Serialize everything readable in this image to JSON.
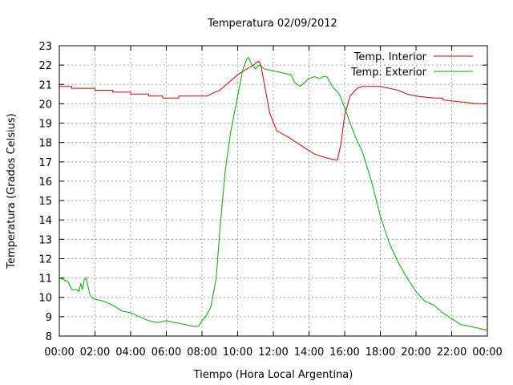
{
  "chart_data": {
    "type": "line",
    "title": "Temperatura 02/09/2012",
    "xlabel": "Tiempo (Hora Local Argentina)",
    "ylabel": "Temperatura (Grados Celsius)",
    "xlim": [
      0,
      24
    ],
    "ylim": [
      8,
      23
    ],
    "x_ticks": [
      "00:00",
      "02:00",
      "04:00",
      "06:00",
      "08:00",
      "10:00",
      "12:00",
      "14:00",
      "16:00",
      "18:00",
      "20:00",
      "22:00",
      "00:00"
    ],
    "y_ticks": [
      "8",
      "9",
      "10",
      "11",
      "12",
      "13",
      "14",
      "15",
      "16",
      "17",
      "18",
      "19",
      "20",
      "21",
      "22",
      "23"
    ],
    "grid": true,
    "legend_position": "top-right",
    "series": [
      {
        "name": "Temp. Interior",
        "color": "#cc0000",
        "x": [
          0,
          0.7,
          0.7,
          2.0,
          2.0,
          3.0,
          3.0,
          4.0,
          4.0,
          5.0,
          5.0,
          5.8,
          5.8,
          6.7,
          6.7,
          8.3,
          8.5,
          9.0,
          9.5,
          10.0,
          10.5,
          10.9,
          11.0,
          11.2,
          11.3,
          11.5,
          11.8,
          12.2,
          12.8,
          13.3,
          13.8,
          14.3,
          15.0,
          15.5,
          15.6,
          15.8,
          16.0,
          16.3,
          16.7,
          17.0,
          17.5,
          18.0,
          18.5,
          19.0,
          19.5,
          20.0,
          21.0,
          21.5,
          21.5,
          22.5,
          23.5,
          24.0
        ],
        "y": [
          20.9,
          20.9,
          20.8,
          20.8,
          20.7,
          20.7,
          20.6,
          20.6,
          20.5,
          20.5,
          20.4,
          20.4,
          20.3,
          20.3,
          20.4,
          20.4,
          20.5,
          20.7,
          21.1,
          21.5,
          21.8,
          22.0,
          22.1,
          22.2,
          22.0,
          21.0,
          19.5,
          18.6,
          18.3,
          18.0,
          17.7,
          17.4,
          17.2,
          17.1,
          17.1,
          18.0,
          19.4,
          20.4,
          20.8,
          20.9,
          20.9,
          20.9,
          20.8,
          20.7,
          20.5,
          20.4,
          20.3,
          20.3,
          20.2,
          20.1,
          20.0,
          20.0
        ]
      },
      {
        "name": "Temp. Exterior",
        "color": "#00aa00",
        "x": [
          0,
          0.3,
          0.5,
          0.7,
          1.0,
          1.1,
          1.2,
          1.3,
          1.4,
          1.5,
          1.6,
          1.7,
          1.8,
          2.0,
          2.5,
          3.0,
          3.5,
          4.0,
          4.5,
          5.0,
          5.5,
          6.0,
          6.5,
          7.0,
          7.5,
          7.8,
          8.0,
          8.2,
          8.5,
          8.8,
          9.0,
          9.3,
          9.6,
          10.0,
          10.3,
          10.5,
          10.6,
          10.8,
          11.0,
          11.2,
          11.5,
          12.0,
          12.5,
          13.0,
          13.2,
          13.5,
          14.0,
          14.3,
          14.6,
          14.8,
          15.0,
          15.3,
          15.7,
          16.0,
          16.3,
          16.6,
          17.0,
          17.5,
          18.0,
          18.5,
          19.0,
          19.5,
          20.0,
          20.5,
          21.0,
          21.5,
          22.0,
          22.5,
          23.0,
          23.5,
          24.0
        ],
        "y": [
          11.0,
          10.9,
          10.8,
          10.4,
          10.4,
          10.3,
          10.7,
          10.4,
          10.9,
          11.0,
          10.6,
          10.2,
          10.0,
          9.9,
          9.8,
          9.6,
          9.3,
          9.2,
          9.0,
          8.8,
          8.7,
          8.8,
          8.7,
          8.6,
          8.5,
          8.5,
          8.8,
          9.0,
          9.5,
          11.0,
          13.5,
          16.5,
          18.5,
          20.4,
          21.8,
          22.3,
          22.4,
          22.0,
          21.8,
          22.0,
          21.8,
          21.7,
          21.6,
          21.5,
          21.1,
          20.9,
          21.3,
          21.4,
          21.3,
          21.4,
          21.4,
          20.9,
          20.5,
          19.8,
          19.0,
          18.3,
          17.5,
          16.0,
          14.2,
          12.8,
          11.8,
          11.0,
          10.3,
          9.8,
          9.6,
          9.2,
          8.9,
          8.6,
          8.5,
          8.4,
          8.3
        ]
      }
    ]
  }
}
